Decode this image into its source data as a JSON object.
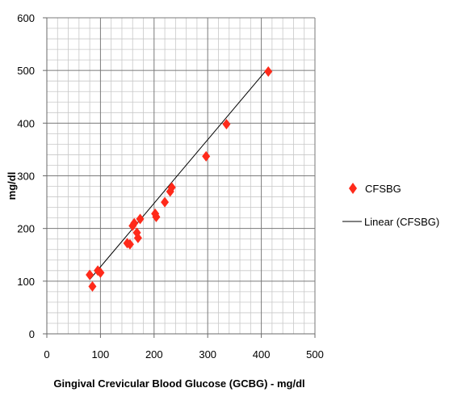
{
  "chart_data": {
    "type": "scatter",
    "title": "",
    "xlabel": "Gingival Crevicular Blood Glucose (GCBG) - mg/dl",
    "ylabel": "mg/dl",
    "xlim": [
      0,
      500
    ],
    "ylim": [
      0,
      600
    ],
    "xticks": [
      "0",
      "100",
      "200",
      "300",
      "400",
      "500"
    ],
    "yticks": [
      "0",
      "100",
      "200",
      "300",
      "400",
      "500",
      "600"
    ],
    "grid": true,
    "legend": "right",
    "series": [
      {
        "name": "CFSBG",
        "marker": "diamond",
        "color": "#ff2a1a",
        "points": [
          {
            "x": 80,
            "y": 112
          },
          {
            "x": 85,
            "y": 90
          },
          {
            "x": 95,
            "y": 120
          },
          {
            "x": 100,
            "y": 116
          },
          {
            "x": 150,
            "y": 172
          },
          {
            "x": 155,
            "y": 170
          },
          {
            "x": 160,
            "y": 205
          },
          {
            "x": 163,
            "y": 210
          },
          {
            "x": 168,
            "y": 192
          },
          {
            "x": 170,
            "y": 182
          },
          {
            "x": 174,
            "y": 218
          },
          {
            "x": 202,
            "y": 228
          },
          {
            "x": 204,
            "y": 222
          },
          {
            "x": 220,
            "y": 250
          },
          {
            "x": 230,
            "y": 270
          },
          {
            "x": 233,
            "y": 278
          },
          {
            "x": 297,
            "y": 337
          },
          {
            "x": 335,
            "y": 398
          },
          {
            "x": 413,
            "y": 498
          }
        ]
      }
    ],
    "trendline": {
      "name": "Linear (CFSBG)",
      "type": "linear",
      "color": "#000000",
      "from": {
        "x": 80,
        "y": 103
      },
      "to": {
        "x": 413,
        "y": 505
      }
    }
  }
}
